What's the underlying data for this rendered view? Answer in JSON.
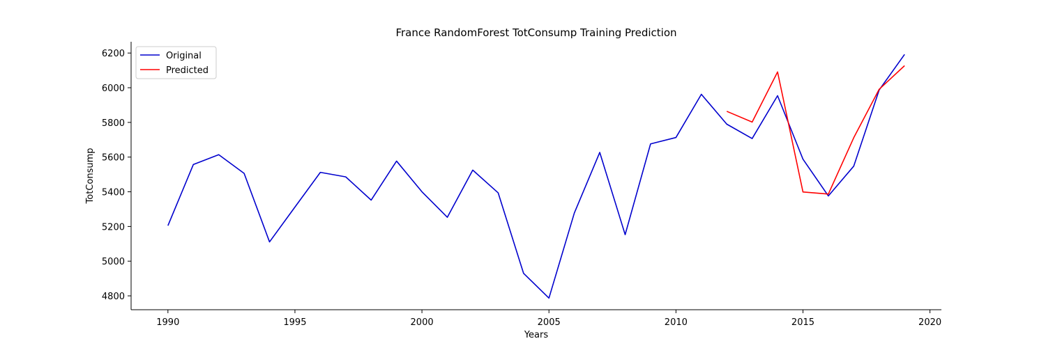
{
  "chart_data": {
    "type": "line",
    "title": "France RandomForest TotConsump Training Prediction",
    "xlabel": "Years",
    "ylabel": "TotConsump",
    "xlim": [
      1988.55,
      2020.45
    ],
    "ylim": [
      4720,
      6265
    ],
    "xticks": [
      1990,
      1995,
      2000,
      2005,
      2010,
      2015,
      2020
    ],
    "yticks": [
      4800,
      5000,
      5200,
      5400,
      5600,
      5800,
      6000,
      6200
    ],
    "legend_position": "upper-left",
    "grid": false,
    "series": [
      {
        "name": "Original",
        "color": "#0000cd",
        "x": [
          1990,
          1991,
          1992,
          1993,
          1994,
          1995,
          1996,
          1997,
          1998,
          1999,
          2000,
          2001,
          2002,
          2003,
          2004,
          2005,
          2006,
          2007,
          2008,
          2009,
          2010,
          2011,
          2012,
          2013,
          2014,
          2015,
          2016,
          2017,
          2018,
          2019
        ],
        "y": [
          5205,
          5557,
          5614,
          5506,
          5111,
          5312,
          5512,
          5486,
          5352,
          5577,
          5400,
          5253,
          5525,
          5394,
          4930,
          4787,
          5278,
          5627,
          5153,
          5676,
          5713,
          5962,
          5790,
          5707,
          5954,
          5588,
          5376,
          5548,
          5987,
          6192
        ]
      },
      {
        "name": "Predicted",
        "color": "#ff0000",
        "x": [
          2012,
          2013,
          2014,
          2015,
          2016,
          2017,
          2018,
          2019
        ],
        "y": [
          5864,
          5802,
          6091,
          5399,
          5387,
          5712,
          5991,
          6127
        ]
      }
    ]
  }
}
